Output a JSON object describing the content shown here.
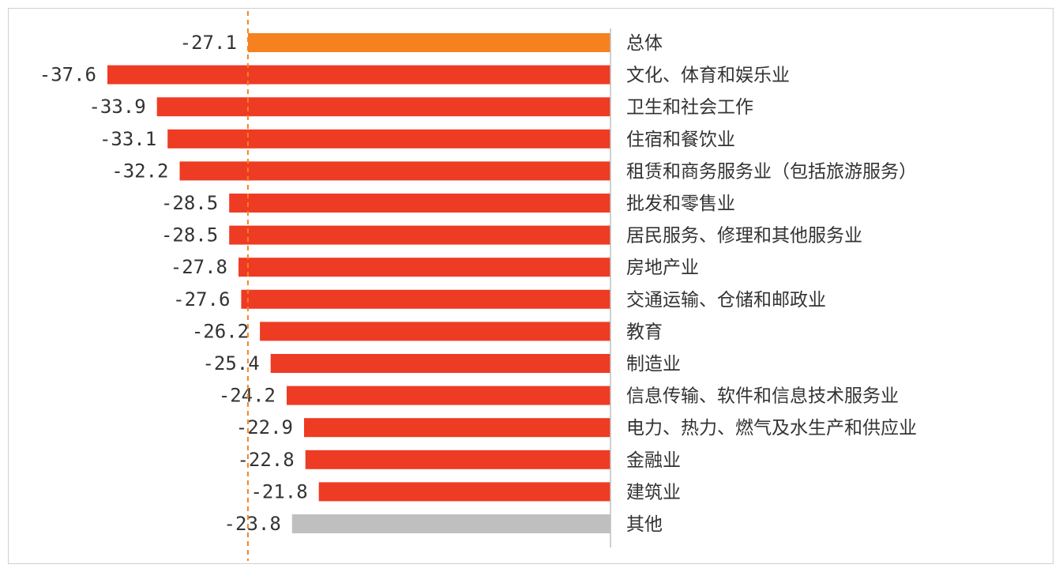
{
  "chart_data": {
    "type": "bar",
    "orientation": "horizontal",
    "categories": [
      "总体",
      "文化、体育和娱乐业",
      "卫生和社会工作",
      "住宿和餐饮业",
      "租赁和商务服务业（包括旅游服务）",
      "批发和零售业",
      "居民服务、修理和其他服务业",
      "房地产业",
      "交通运输、仓储和邮政业",
      "教育",
      "制造业",
      "信息传输、软件和信息技术服务业",
      "电力、热力、燃气及水生产和供应业",
      "金融业",
      "建筑业",
      "其他"
    ],
    "values": [
      -27.1,
      -37.6,
      -33.9,
      -33.1,
      -32.2,
      -28.5,
      -28.5,
      -27.8,
      -27.6,
      -26.2,
      -25.4,
      -24.2,
      -22.9,
      -22.8,
      -21.8,
      -23.8
    ],
    "value_labels": [
      "-27.1",
      "-37.6",
      "-33.9",
      "-33.1",
      "-32.2",
      "-28.5",
      "-28.5",
      "-27.8",
      "-27.6",
      "-26.2",
      "-25.4",
      "-24.2",
      "-22.9",
      "-22.8",
      "-21.8",
      "-23.8"
    ],
    "colors": [
      "#f5821f",
      "#ee3b24",
      "#ee3b24",
      "#ee3b24",
      "#ee3b24",
      "#ee3b24",
      "#ee3b24",
      "#ee3b24",
      "#ee3b24",
      "#ee3b24",
      "#ee3b24",
      "#ee3b24",
      "#ee3b24",
      "#ee3b24",
      "#ee3b24",
      "#bfbfbf"
    ],
    "reference_line": {
      "value": -27.1,
      "style": "dashed",
      "color": "#f5821f"
    },
    "xlim": [
      -38,
      0
    ],
    "grid": false,
    "legend": "none",
    "title": "",
    "xlabel": "",
    "ylabel": ""
  }
}
